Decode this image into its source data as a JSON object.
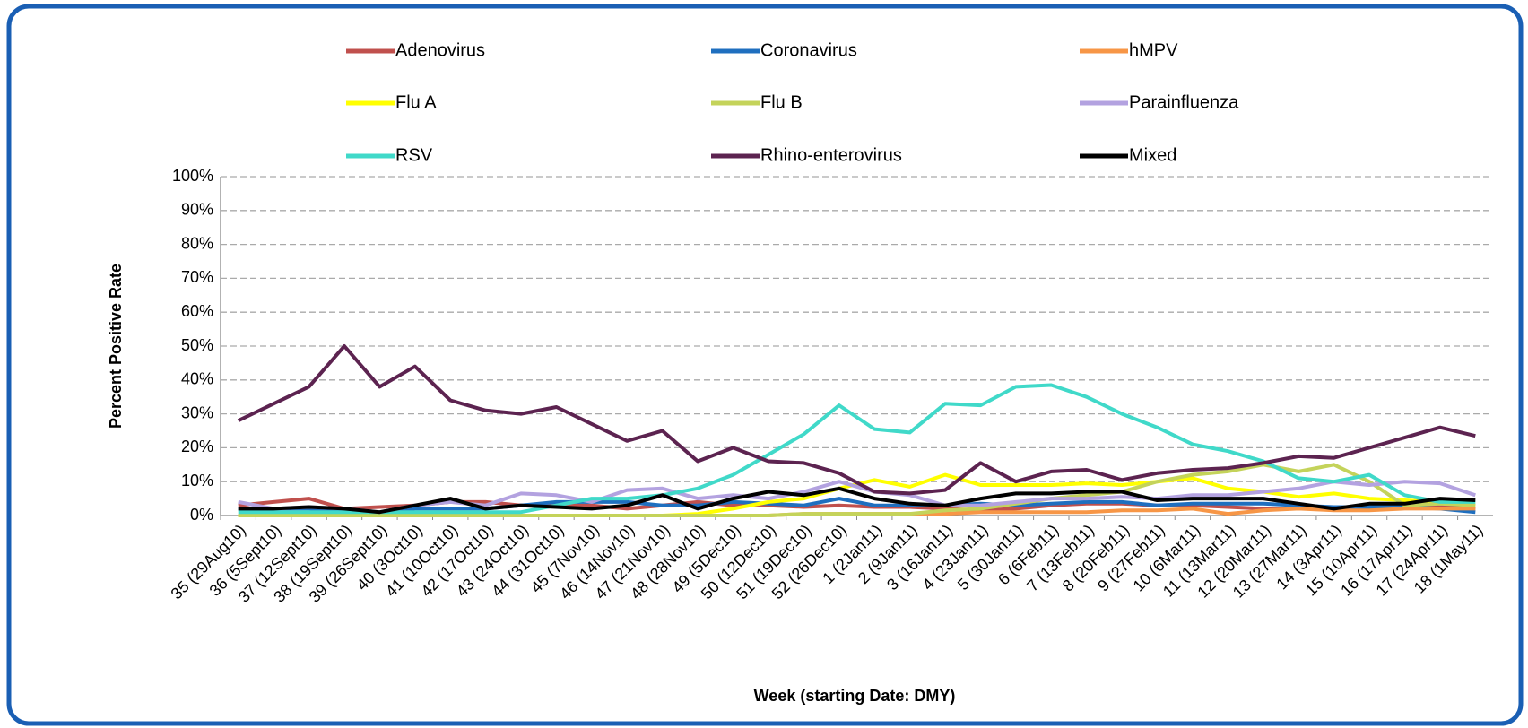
{
  "chart_data": {
    "type": "line",
    "y_label": "Percent Positive Rate",
    "x_label": "Week (starting Date: DMY)",
    "categories": [
      "35 (29Aug10)",
      "36 (5Sept10)",
      "37 (12Sept10)",
      "38 (19Sept10)",
      "39 (26Sept10)",
      "40 (3Oct10)",
      "41 (10Oct10)",
      "42 (17Oct10)",
      "43 (24Oct10)",
      "44 (31Oct10)",
      "45 (7Nov10)",
      "46 (14Nov10)",
      "47 (21Nov10)",
      "48 (28Nov10)",
      "49 (5Dec10)",
      "50 (12Dec10)",
      "51 (19Dec10)",
      "52 (26Dec10)",
      "1 (2Jan11)",
      "2 (9Jan11)",
      "3 (16Jan11)",
      "4 (23Jan11)",
      "5 (30Jan11)",
      "6 (6Feb11)",
      "7 (13Feb11)",
      "8 (20Feb11)",
      "9 (27Feb11)",
      "10 (6Mar11)",
      "11 (13Mar11)",
      "12 (20Mar11)",
      "13 (27Mar11)",
      "14 (3Apr11)",
      "15 (10Apr11)",
      "16 (17Apr11)",
      "17 (24Apr11)",
      "18 (1May11)"
    ],
    "series": [
      {
        "name": "Adenovirus",
        "color": "#c0504d",
        "values": [
          3,
          4,
          5,
          2,
          2.5,
          3,
          4,
          4,
          3,
          3,
          3,
          2,
          3,
          4,
          3,
          3,
          2.5,
          3,
          2.5,
          2.5,
          2,
          1.5,
          2,
          3,
          3.5,
          3.5,
          3,
          3,
          2.5,
          2,
          2,
          2,
          2.5,
          3,
          3,
          2
        ]
      },
      {
        "name": "Coronavirus",
        "color": "#1f6fbf",
        "values": [
          2,
          2,
          2,
          1.5,
          1,
          2,
          2,
          2,
          3,
          4,
          4,
          4,
          3,
          3,
          4,
          3.5,
          3,
          5,
          3,
          3,
          3,
          3.5,
          3,
          3.5,
          4,
          4,
          3,
          3.5,
          3.5,
          3.5,
          3,
          2.5,
          2.5,
          2.5,
          2,
          1
        ]
      },
      {
        "name": "hMPV",
        "color": "#f79646",
        "values": [
          0,
          0,
          0,
          0,
          0,
          0,
          0,
          0,
          0,
          0,
          0,
          0,
          0,
          0,
          0,
          0,
          0.5,
          0.5,
          0.5,
          0.5,
          0.5,
          1,
          1,
          1,
          1,
          1.5,
          1.5,
          2,
          0.5,
          1.5,
          2,
          1.5,
          1.5,
          2,
          2,
          2
        ]
      },
      {
        "name": "Flu A",
        "color": "#ffff00",
        "values": [
          0,
          0,
          0,
          0,
          0,
          0,
          0,
          0,
          0,
          0,
          0,
          0,
          0,
          0.5,
          2,
          4,
          5,
          8,
          10.5,
          8.5,
          12,
          9,
          9,
          9,
          9.5,
          9,
          10,
          11,
          8,
          7,
          5.5,
          6.5,
          5,
          4.5,
          4,
          3
        ]
      },
      {
        "name": "Flu B",
        "color": "#c4d35a",
        "values": [
          0,
          0,
          0,
          0,
          0,
          0,
          0,
          0,
          0,
          0,
          0,
          0,
          0,
          0,
          0,
          0,
          0.5,
          0.5,
          0.5,
          0.5,
          1.5,
          2,
          3.5,
          5,
          6,
          7,
          10,
          12,
          13,
          15,
          13,
          15,
          10,
          3,
          3.5,
          3
        ]
      },
      {
        "name": "Parainfluenza",
        "color": "#b3a2e0",
        "values": [
          4,
          2,
          2.5,
          2,
          1,
          3,
          4,
          3,
          6.5,
          6,
          4,
          7.5,
          8,
          5,
          6,
          5,
          7,
          10,
          7,
          6,
          3,
          3,
          4,
          5,
          5,
          5.5,
          5,
          6,
          6,
          7,
          8,
          10,
          9,
          10,
          9.5,
          6
        ]
      },
      {
        "name": "RSV",
        "color": "#40d9c9",
        "values": [
          1,
          1,
          1,
          1,
          1,
          1,
          1,
          1,
          1,
          3,
          5,
          5,
          6,
          8,
          12,
          18,
          24,
          32.5,
          25.5,
          24.5,
          33,
          32.5,
          38,
          38.5,
          35,
          30,
          26,
          21,
          19,
          16,
          11,
          10,
          12,
          6,
          4,
          4
        ]
      },
      {
        "name": "Rhino-enterovirus",
        "color": "#5c2350",
        "values": [
          28,
          33,
          38,
          50,
          38,
          44,
          34,
          31,
          30,
          32,
          27,
          22,
          25,
          16,
          20,
          16,
          15.5,
          12.5,
          7,
          6.5,
          7.5,
          15.5,
          10,
          13,
          13.5,
          10.5,
          12.5,
          13.5,
          14,
          15.5,
          17.5,
          17,
          20,
          23,
          26,
          23.5
        ]
      },
      {
        "name": "Mixed",
        "color": "#000000",
        "values": [
          2,
          2,
          2.5,
          2,
          1,
          3,
          5,
          2,
          3,
          2.5,
          2,
          3,
          6,
          2,
          5,
          7,
          6,
          8,
          5,
          3.5,
          3,
          5,
          6.5,
          6.5,
          7,
          7,
          4.5,
          5,
          5,
          5,
          3.5,
          2,
          3.5,
          3.5,
          5,
          4.5
        ]
      }
    ],
    "ylim": [
      0,
      100
    ],
    "yticks": [
      {
        "value": 0,
        "label": "0%"
      },
      {
        "value": 10,
        "label": "10%"
      },
      {
        "value": 20,
        "label": "20%"
      },
      {
        "value": 30,
        "label": "30%"
      },
      {
        "value": 40,
        "label": "40%"
      },
      {
        "value": 50,
        "label": "50%"
      },
      {
        "value": 60,
        "label": "60%"
      },
      {
        "value": 70,
        "label": "70%"
      },
      {
        "value": 80,
        "label": "80%"
      },
      {
        "value": 90,
        "label": "90%"
      },
      {
        "value": 100,
        "label": "100%"
      }
    ],
    "grid": true,
    "legend": "top"
  }
}
